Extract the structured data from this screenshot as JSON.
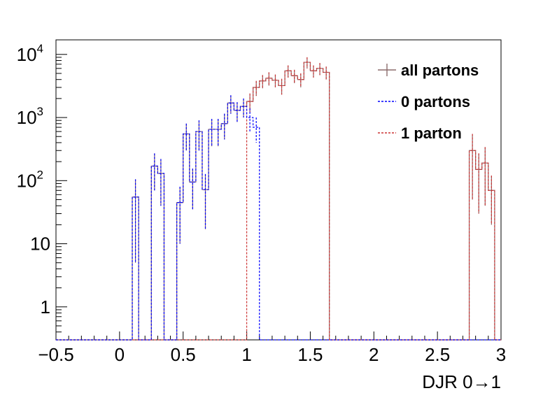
{
  "chart_data": {
    "type": "histogram",
    "xlabel": "DJR 0→1",
    "ylabel": "",
    "xlim": [
      -0.5,
      3.0
    ],
    "ylim": [
      0.3,
      17000
    ],
    "yscale": "log",
    "grid": false,
    "bin_width": 0.05,
    "legend_position": "top-right",
    "x_ticks": [
      "−0.5",
      "0",
      "0.5",
      "1",
      "1.5",
      "2",
      "2.5",
      "3"
    ],
    "x_tick_values": [
      -0.5,
      0,
      0.5,
      1,
      1.5,
      2,
      2.5,
      3
    ],
    "y_ticks": [
      {
        "value": 1,
        "label": "1",
        "sup": ""
      },
      {
        "value": 10,
        "label": "10",
        "sup": ""
      },
      {
        "value": 100,
        "label": "10",
        "sup": "2"
      },
      {
        "value": 1000,
        "label": "10",
        "sup": "3"
      },
      {
        "value": 10000,
        "label": "10",
        "sup": "4"
      }
    ],
    "series": [
      {
        "name": "all partons",
        "color": "#8c6b6b",
        "style": "solid",
        "bins": [
          [
            0.1,
            55,
            50
          ],
          [
            0.15,
            0,
            0
          ],
          [
            0.2,
            0,
            0
          ],
          [
            0.25,
            170,
            100
          ],
          [
            0.3,
            130,
            90
          ],
          [
            0.35,
            0,
            0
          ],
          [
            0.4,
            0,
            0
          ],
          [
            0.45,
            45,
            35
          ],
          [
            0.5,
            550,
            250
          ],
          [
            0.55,
            95,
            60
          ],
          [
            0.6,
            600,
            300
          ],
          [
            0.65,
            72,
            55
          ],
          [
            0.7,
            650,
            300
          ],
          [
            0.75,
            650,
            300
          ],
          [
            0.8,
            800,
            350
          ],
          [
            0.85,
            1700,
            550
          ],
          [
            0.9,
            1300,
            450
          ],
          [
            0.95,
            1500,
            500
          ],
          [
            1.0,
            1800,
            600
          ],
          [
            1.05,
            3000,
            800
          ],
          [
            1.1,
            3800,
            900
          ],
          [
            1.15,
            4200,
            1000
          ],
          [
            1.2,
            3900,
            900
          ],
          [
            1.25,
            3200,
            900
          ],
          [
            1.3,
            5500,
            1200
          ],
          [
            1.35,
            4600,
            1100
          ],
          [
            1.4,
            4000,
            1000
          ],
          [
            1.45,
            7500,
            1500
          ],
          [
            1.5,
            5500,
            1200
          ],
          [
            1.55,
            6000,
            1300
          ],
          [
            1.6,
            5200,
            1200
          ],
          [
            2.75,
            300,
            250
          ],
          [
            2.8,
            150,
            120
          ],
          [
            2.85,
            190,
            150
          ],
          [
            2.9,
            70,
            50
          ]
        ]
      },
      {
        "name": "0 partons",
        "color": "#0000ff",
        "style": "dashed",
        "bins": [
          [
            0.1,
            55,
            50
          ],
          [
            0.15,
            0,
            0
          ],
          [
            0.2,
            0,
            0
          ],
          [
            0.25,
            170,
            100
          ],
          [
            0.3,
            130,
            90
          ],
          [
            0.35,
            0,
            0
          ],
          [
            0.4,
            0,
            0
          ],
          [
            0.45,
            45,
            35
          ],
          [
            0.5,
            550,
            250
          ],
          [
            0.55,
            95,
            60
          ],
          [
            0.6,
            600,
            300
          ],
          [
            0.65,
            72,
            55
          ],
          [
            0.7,
            650,
            300
          ],
          [
            0.75,
            650,
            300
          ],
          [
            0.8,
            800,
            350
          ],
          [
            0.85,
            1700,
            550
          ],
          [
            0.9,
            1300,
            450
          ],
          [
            0.95,
            1500,
            500
          ],
          [
            1.0,
            1000,
            400
          ],
          [
            1.05,
            700,
            300
          ]
        ]
      },
      {
        "name": "1 parton",
        "color": "#cc3333",
        "style": "dashed",
        "bins": [
          [
            1.0,
            1800,
            600
          ],
          [
            1.05,
            3000,
            800
          ],
          [
            1.1,
            3800,
            900
          ],
          [
            1.15,
            4200,
            1000
          ],
          [
            1.2,
            3900,
            900
          ],
          [
            1.25,
            3200,
            900
          ],
          [
            1.3,
            5500,
            1200
          ],
          [
            1.35,
            4600,
            1100
          ],
          [
            1.4,
            4000,
            1000
          ],
          [
            1.45,
            7500,
            1500
          ],
          [
            1.5,
            5500,
            1200
          ],
          [
            1.55,
            6000,
            1300
          ],
          [
            1.6,
            5200,
            1200
          ],
          [
            2.75,
            300,
            250
          ],
          [
            2.8,
            150,
            120
          ],
          [
            2.85,
            190,
            150
          ],
          [
            2.9,
            70,
            50
          ]
        ]
      }
    ]
  }
}
